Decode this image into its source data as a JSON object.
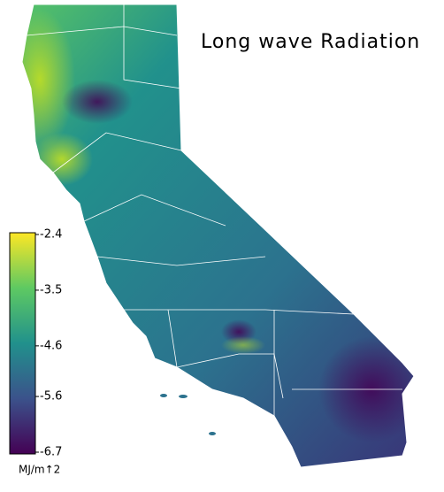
{
  "title": "Long wave Radiation",
  "colorbar": {
    "range": [
      -6.7,
      -2.4
    ],
    "ticks": [
      -2.4,
      -3.5,
      -4.6,
      -5.6,
      -6.7
    ],
    "label": "MJ/m↑2",
    "colors": [
      "#440154",
      "#3b528b",
      "#21918c",
      "#5ec962",
      "#fde725"
    ]
  }
}
